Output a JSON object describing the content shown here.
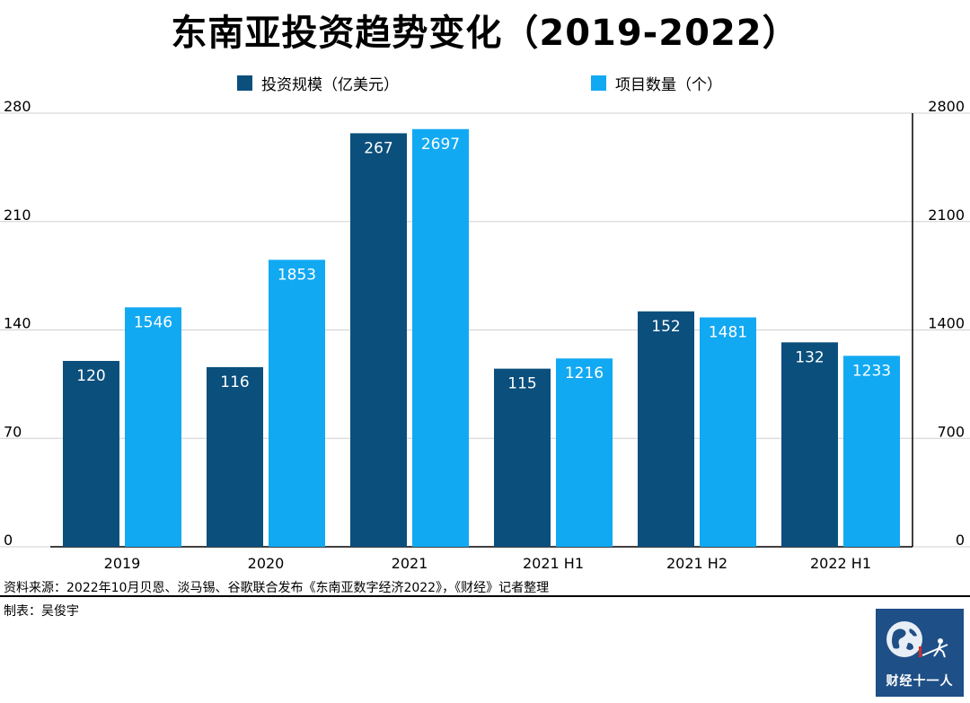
{
  "title": "东南亚投资趋势变化（2019-2022）",
  "source": "资料来源：2022年10月贝恩、淡马锡、谷歌联合发布《东南亚数字经济2022》，《财经》记者整理",
  "credit": "制表：吴俊宇",
  "logo_text": "财经十一人",
  "colors": {
    "series1": "#0b4f7d",
    "series2": "#12a9f3",
    "grid": "#d0d0d0"
  },
  "chart_data": {
    "type": "bar",
    "title": "东南亚投资趋势变化（2019-2022）",
    "categories": [
      "2019",
      "2020",
      "2021",
      "2021 H1",
      "2021 H2",
      "2022 H1"
    ],
    "series": [
      {
        "name": "投资规模（亿美元）",
        "values": [
          120,
          116,
          267,
          115,
          152,
          132
        ],
        "axis": "left"
      },
      {
        "name": "项目数量（个）",
        "values": [
          1546,
          1853,
          2697,
          1216,
          1481,
          1233
        ],
        "axis": "right"
      }
    ],
    "ylim_left": [
      0,
      280
    ],
    "yticks_left": [
      "0",
      "70",
      "140",
      "210",
      "280"
    ],
    "ylim_right": [
      0,
      2800
    ],
    "yticks_right": [
      "0",
      "700",
      "1400",
      "2100",
      "2800"
    ],
    "grid": true,
    "legend_position": "top"
  }
}
